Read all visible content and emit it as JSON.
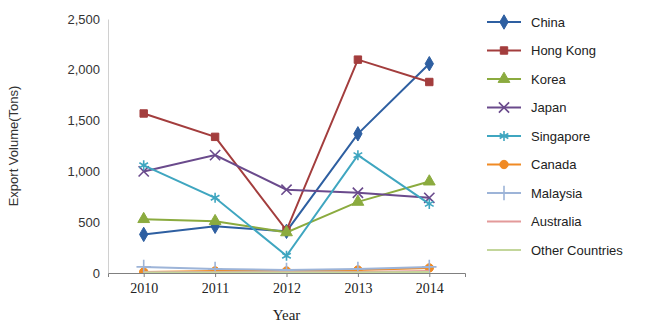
{
  "chart_data": {
    "type": "line",
    "x_label": "Year",
    "y_label": "Export Volume(Tons)",
    "categories": [
      "2010",
      "2011",
      "2012",
      "2013",
      "2014"
    ],
    "ylim": [
      0,
      2500
    ],
    "yticks": [
      0,
      500,
      {
        "value": 1000,
        "label": "1,000"
      },
      {
        "value": 1500,
        "label": "1,500"
      },
      {
        "value": 2000,
        "label": "2,000"
      },
      {
        "value": 2500,
        "label": "2,500"
      }
    ],
    "grid": false,
    "legend": "right",
    "series": [
      {
        "name": "China",
        "color": "#2e5fa1",
        "marker": "diamond",
        "values": [
          380,
          460,
          410,
          1370,
          2060
        ]
      },
      {
        "name": "Hong Kong",
        "color": "#a33d3d",
        "marker": "square",
        "values": [
          1570,
          1340,
          420,
          2100,
          1880
        ]
      },
      {
        "name": "Korea",
        "color": "#8bab3f",
        "marker": "triangle",
        "values": [
          530,
          510,
          400,
          700,
          900
        ]
      },
      {
        "name": "Japan",
        "color": "#6a4a8c",
        "marker": "x",
        "values": [
          1000,
          1160,
          820,
          790,
          740
        ]
      },
      {
        "name": "Singapore",
        "color": "#3fa6c0",
        "marker": "asterisk",
        "values": [
          1060,
          740,
          170,
          1160,
          680
        ]
      },
      {
        "name": "Canada",
        "color": "#f08a24",
        "marker": "circle",
        "values": [
          10,
          20,
          20,
          30,
          50
        ]
      },
      {
        "name": "Malaysia",
        "color": "#9db4d8",
        "marker": "plus",
        "values": [
          60,
          40,
          30,
          40,
          60
        ]
      },
      {
        "name": "Australia",
        "color": "#e39a9a",
        "marker": "none",
        "values": [
          10,
          10,
          10,
          10,
          20
        ]
      },
      {
        "name": "Other Countries",
        "color": "#c3d69b",
        "marker": "none",
        "values": [
          5,
          5,
          5,
          5,
          10
        ]
      }
    ]
  }
}
